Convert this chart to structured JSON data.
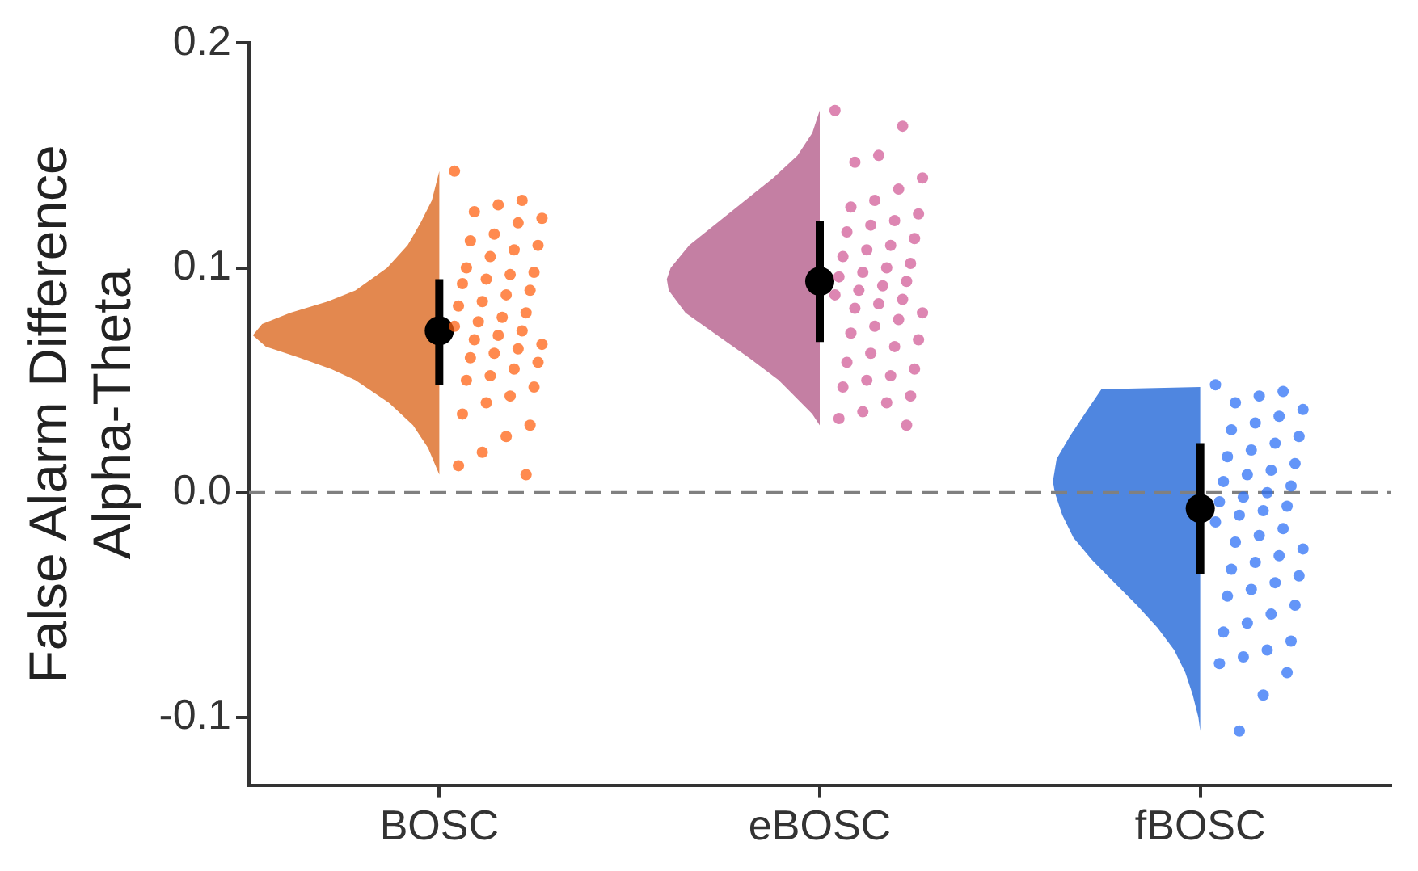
{
  "chart_data": {
    "type": "scatter",
    "ylabel": "False Alarm Difference\nAlpha-Theta",
    "categories": [
      "BOSC",
      "eBOSC",
      "fBOSC"
    ],
    "ylim": [
      -0.13,
      0.2
    ],
    "yticks": [
      {
        "value": -0.1,
        "label": "-0.1"
      },
      {
        "value": 0,
        "label": "0.0"
      },
      {
        "value": 0.1,
        "label": "0.1"
      },
      {
        "value": 0.2,
        "label": "0.2"
      }
    ],
    "grid": false,
    "legend": false,
    "marker": "circle",
    "ref_lines": [
      {
        "axis": "y",
        "value": 0,
        "color": "#808080",
        "line_style": "dashed"
      }
    ],
    "series": [
      {
        "color": "#ff5f0f",
        "x": [
          "BOSC",
          "BOSC",
          "BOSC",
          "BOSC",
          "BOSC",
          "BOSC",
          "BOSC",
          "BOSC",
          "BOSC",
          "BOSC",
          "BOSC",
          "BOSC",
          "BOSC",
          "BOSC",
          "BOSC",
          "BOSC",
          "BOSC",
          "BOSC",
          "BOSC",
          "BOSC",
          "BOSC",
          "BOSC",
          "BOSC",
          "BOSC",
          "BOSC",
          "BOSC",
          "BOSC",
          "BOSC",
          "BOSC",
          "BOSC",
          "BOSC",
          "BOSC",
          "BOSC",
          "BOSC",
          "BOSC",
          "BOSC",
          "BOSC",
          "BOSC",
          "BOSC",
          "BOSC",
          "BOSC",
          "BOSC",
          "BOSC",
          "BOSC"
        ],
        "values": [
          0.143,
          0.13,
          0.128,
          0.125,
          0.122,
          0.12,
          0.115,
          0.112,
          0.11,
          0.108,
          0.105,
          0.1,
          0.098,
          0.097,
          0.095,
          0.093,
          0.09,
          0.088,
          0.085,
          0.083,
          0.08,
          0.078,
          0.076,
          0.074,
          0.072,
          0.07,
          0.068,
          0.066,
          0.064,
          0.062,
          0.06,
          0.058,
          0.055,
          0.052,
          0.05,
          0.047,
          0.043,
          0.04,
          0.035,
          0.03,
          0.025,
          0.018,
          0.012,
          0.008
        ]
      },
      {
        "color": "#d05a96",
        "x": [
          "eBOSC",
          "eBOSC",
          "eBOSC",
          "eBOSC",
          "eBOSC",
          "eBOSC",
          "eBOSC",
          "eBOSC",
          "eBOSC",
          "eBOSC",
          "eBOSC",
          "eBOSC",
          "eBOSC",
          "eBOSC",
          "eBOSC",
          "eBOSC",
          "eBOSC",
          "eBOSC",
          "eBOSC",
          "eBOSC",
          "eBOSC",
          "eBOSC",
          "eBOSC",
          "eBOSC",
          "eBOSC",
          "eBOSC",
          "eBOSC",
          "eBOSC",
          "eBOSC",
          "eBOSC",
          "eBOSC",
          "eBOSC",
          "eBOSC",
          "eBOSC",
          "eBOSC",
          "eBOSC",
          "eBOSC",
          "eBOSC",
          "eBOSC",
          "eBOSC",
          "eBOSC",
          "eBOSC",
          "eBOSC",
          "eBOSC"
        ],
        "values": [
          0.17,
          0.163,
          0.15,
          0.147,
          0.14,
          0.135,
          0.13,
          0.127,
          0.124,
          0.121,
          0.119,
          0.116,
          0.113,
          0.11,
          0.108,
          0.105,
          0.102,
          0.1,
          0.098,
          0.096,
          0.094,
          0.092,
          0.09,
          0.088,
          0.086,
          0.084,
          0.082,
          0.08,
          0.077,
          0.074,
          0.071,
          0.068,
          0.065,
          0.062,
          0.058,
          0.055,
          0.052,
          0.05,
          0.047,
          0.043,
          0.04,
          0.036,
          0.033,
          0.03
        ]
      },
      {
        "color": "#2a6ef5",
        "x": [
          "fBOSC",
          "fBOSC",
          "fBOSC",
          "fBOSC",
          "fBOSC",
          "fBOSC",
          "fBOSC",
          "fBOSC",
          "fBOSC",
          "fBOSC",
          "fBOSC",
          "fBOSC",
          "fBOSC",
          "fBOSC",
          "fBOSC",
          "fBOSC",
          "fBOSC",
          "fBOSC",
          "fBOSC",
          "fBOSC",
          "fBOSC",
          "fBOSC",
          "fBOSC",
          "fBOSC",
          "fBOSC",
          "fBOSC",
          "fBOSC",
          "fBOSC",
          "fBOSC",
          "fBOSC",
          "fBOSC",
          "fBOSC",
          "fBOSC",
          "fBOSC",
          "fBOSC",
          "fBOSC",
          "fBOSC",
          "fBOSC",
          "fBOSC",
          "fBOSC",
          "fBOSC",
          "fBOSC",
          "fBOSC",
          "fBOSC",
          "fBOSC",
          "fBOSC"
        ],
        "values": [
          0.048,
          0.045,
          0.043,
          0.04,
          0.037,
          0.034,
          0.031,
          0.028,
          0.025,
          0.022,
          0.019,
          0.016,
          0.013,
          0.01,
          0.008,
          0.005,
          0.003,
          0.0,
          -0.002,
          -0.004,
          -0.006,
          -0.008,
          -0.01,
          -0.013,
          -0.016,
          -0.019,
          -0.022,
          -0.025,
          -0.028,
          -0.031,
          -0.034,
          -0.037,
          -0.04,
          -0.043,
          -0.046,
          -0.05,
          -0.054,
          -0.058,
          -0.062,
          -0.066,
          -0.07,
          -0.073,
          -0.076,
          -0.08,
          -0.09,
          -0.106
        ]
      },
      {
        "color": "#000000",
        "values": [
          0.072,
          0.094,
          -0.007
        ],
        "errors": [
          [
            0.048,
            0.095
          ],
          [
            0.067,
            0.121
          ],
          [
            -0.036,
            0.022
          ]
        ]
      }
    ]
  }
}
